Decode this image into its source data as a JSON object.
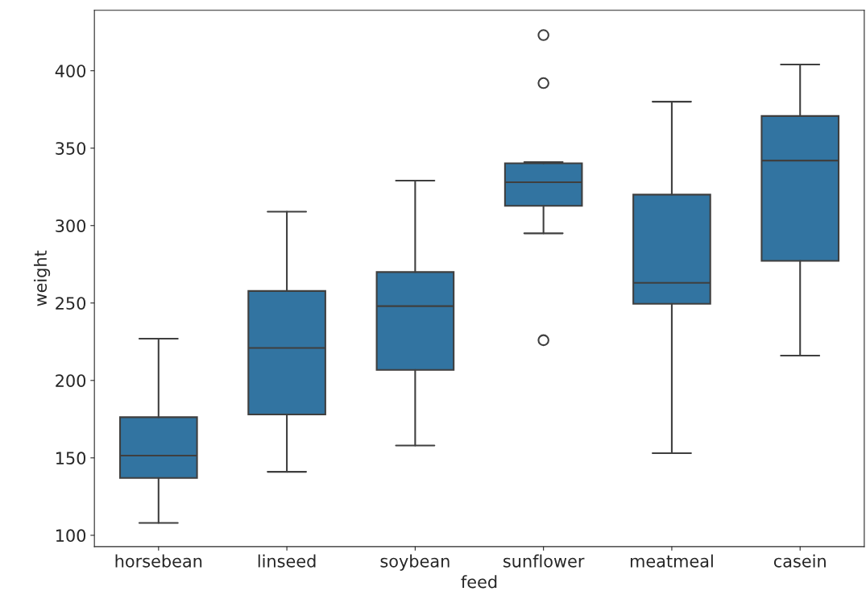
{
  "chart_data": {
    "type": "box",
    "xlabel": "feed",
    "ylabel": "weight",
    "categories": [
      "horsebean",
      "linseed",
      "soybean",
      "sunflower",
      "meatmeal",
      "casein"
    ],
    "color": "#3274a1",
    "boxes": [
      {
        "low": 108,
        "q1": 137,
        "median": 151.5,
        "q3": 176.25,
        "high": 227
      },
      {
        "low": 141,
        "q1": 178,
        "median": 221,
        "q3": 257.75,
        "high": 309
      },
      {
        "low": 158,
        "q1": 206.75,
        "median": 248,
        "q3": 270,
        "high": 329
      },
      {
        "low": 295,
        "q1": 312.75,
        "median": 328,
        "q3": 340.25,
        "high": 341,
        "outliers": [
          226,
          392,
          423
        ]
      },
      {
        "low": 153,
        "q1": 249.5,
        "median": 263,
        "q3": 320,
        "high": 380
      },
      {
        "low": 216,
        "q1": 277.25,
        "median": 342,
        "q3": 370.75,
        "high": 404
      }
    ],
    "ylim": [
      92.7,
      439
    ],
    "yticks": [
      100,
      150,
      200,
      250,
      300,
      350,
      400
    ],
    "grid": false
  }
}
